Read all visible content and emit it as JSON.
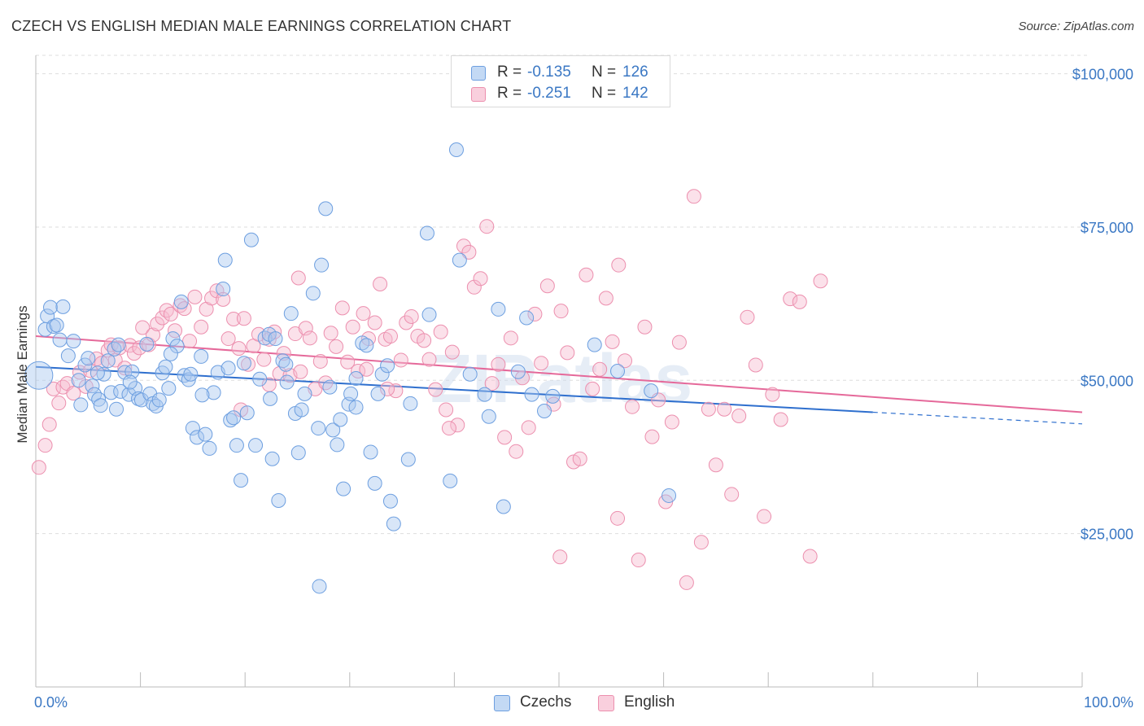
{
  "title": "CZECH VS ENGLISH MEDIAN MALE EARNINGS CORRELATION CHART",
  "source": "Source: ZipAtlas.com",
  "watermark": "ZIPatlas",
  "legend_box": {
    "rows": [
      {
        "r_label": "R =",
        "r_value": "-0.135",
        "n_label": "N =",
        "n_value": "126"
      },
      {
        "r_label": "R =",
        "r_value": "-0.251",
        "n_label": "N =",
        "n_value": "142"
      }
    ]
  },
  "colors": {
    "czechs_fill": "#a9c8f0",
    "czechs_stroke": "#6d9fe0",
    "czechs_line": "#2e6fce",
    "english_fill": "#f7bcd0",
    "english_stroke": "#ec8fae",
    "english_line": "#e5699a",
    "tick_label": "#3b78c4",
    "grid": "#dddddd"
  },
  "chart_data": {
    "type": "scatter",
    "title": "CZECH VS ENGLISH MEDIAN MALE EARNINGS CORRELATION CHART",
    "xlabel": "",
    "ylabel": "Median Male Earnings",
    "x_tick_labels": [
      "0.0%",
      "100.0%"
    ],
    "y_tick_labels": [
      "$25,000",
      "$50,000",
      "$75,000",
      "$100,000"
    ],
    "y_ticks": [
      25000,
      50000,
      75000,
      100000
    ],
    "xlim": [
      0,
      100
    ],
    "ylim": [
      0,
      103000
    ],
    "grid": "horizontal dashed",
    "legend": [
      "Czechs",
      "English"
    ],
    "legend_position": "bottom-center",
    "series": [
      {
        "name": "Czechs",
        "r": -0.135,
        "n": 126,
        "trend": {
          "x_start": 0,
          "y_start": 52200,
          "x_solid_end": 80,
          "y_solid_end": 44800,
          "x_dash_end": 100,
          "y_dash_end": 42900
        },
        "points": [
          [
            0.3,
            50800
          ],
          [
            0.9,
            58300
          ],
          [
            1.1,
            60500
          ],
          [
            1.4,
            61900
          ],
          [
            1.7,
            58800
          ],
          [
            2.0,
            59000
          ],
          [
            2.3,
            56600
          ],
          [
            2.6,
            62000
          ],
          [
            3.1,
            54000
          ],
          [
            3.6,
            56400
          ],
          [
            4.1,
            50000
          ],
          [
            4.3,
            46000
          ],
          [
            4.7,
            52500
          ],
          [
            5.0,
            53600
          ],
          [
            5.4,
            49100
          ],
          [
            5.6,
            47700
          ],
          [
            6.0,
            46900
          ],
          [
            6.2,
            45900
          ],
          [
            6.5,
            51000
          ],
          [
            6.9,
            53200
          ],
          [
            7.2,
            48000
          ],
          [
            7.5,
            55100
          ],
          [
            7.9,
            55800
          ],
          [
            8.1,
            48200
          ],
          [
            8.5,
            51300
          ],
          [
            8.9,
            47700
          ],
          [
            9.2,
            51400
          ],
          [
            9.5,
            48700
          ],
          [
            9.8,
            47000
          ],
          [
            10.1,
            46800
          ],
          [
            10.6,
            55900
          ],
          [
            10.9,
            47800
          ],
          [
            11.2,
            46200
          ],
          [
            11.5,
            45800
          ],
          [
            11.8,
            46800
          ],
          [
            12.1,
            51200
          ],
          [
            12.4,
            52200
          ],
          [
            12.7,
            48700
          ],
          [
            13.1,
            56800
          ],
          [
            13.5,
            55600
          ],
          [
            13.9,
            62800
          ],
          [
            14.2,
            50800
          ],
          [
            14.6,
            50100
          ],
          [
            15.0,
            42200
          ],
          [
            15.4,
            40700
          ],
          [
            15.8,
            53900
          ],
          [
            16.2,
            41200
          ],
          [
            16.6,
            38900
          ],
          [
            17.0,
            48000
          ],
          [
            17.4,
            51300
          ],
          [
            17.9,
            64900
          ],
          [
            18.1,
            69600
          ],
          [
            18.6,
            43500
          ],
          [
            18.9,
            43900
          ],
          [
            19.2,
            39400
          ],
          [
            19.6,
            33700
          ],
          [
            19.9,
            52800
          ],
          [
            20.2,
            44700
          ],
          [
            20.6,
            72900
          ],
          [
            21.0,
            39400
          ],
          [
            21.4,
            50200
          ],
          [
            21.9,
            56900
          ],
          [
            22.3,
            57500
          ],
          [
            22.6,
            37200
          ],
          [
            22.9,
            56800
          ],
          [
            23.2,
            30400
          ],
          [
            23.6,
            53200
          ],
          [
            23.9,
            52600
          ],
          [
            24.4,
            60900
          ],
          [
            24.8,
            44600
          ],
          [
            25.1,
            38200
          ],
          [
            25.4,
            45200
          ],
          [
            25.7,
            47800
          ],
          [
            26.5,
            64200
          ],
          [
            27.0,
            42200
          ],
          [
            27.3,
            68800
          ],
          [
            27.7,
            78000
          ],
          [
            28.1,
            48900
          ],
          [
            28.4,
            41900
          ],
          [
            28.8,
            39500
          ],
          [
            29.1,
            43600
          ],
          [
            29.4,
            32300
          ],
          [
            29.9,
            46100
          ],
          [
            30.1,
            47800
          ],
          [
            30.6,
            45600
          ],
          [
            31.2,
            56100
          ],
          [
            31.6,
            55700
          ],
          [
            32.0,
            38300
          ],
          [
            32.4,
            33200
          ],
          [
            32.7,
            47800
          ],
          [
            33.1,
            51000
          ],
          [
            33.6,
            52400
          ],
          [
            33.9,
            30300
          ],
          [
            34.2,
            26600
          ],
          [
            35.6,
            37100
          ],
          [
            37.4,
            74000
          ],
          [
            37.6,
            60700
          ],
          [
            39.6,
            33600
          ],
          [
            40.5,
            69600
          ],
          [
            41.5,
            51000
          ],
          [
            42.9,
            47700
          ],
          [
            43.3,
            44100
          ],
          [
            44.2,
            61600
          ],
          [
            44.7,
            29400
          ],
          [
            46.1,
            51400
          ],
          [
            46.9,
            60200
          ],
          [
            47.4,
            47700
          ],
          [
            48.6,
            45000
          ],
          [
            49.4,
            47400
          ],
          [
            53.4,
            55800
          ],
          [
            55.6,
            51500
          ],
          [
            58.8,
            48300
          ],
          [
            60.5,
            31200
          ],
          [
            27.1,
            16400
          ],
          [
            40.2,
            87600
          ],
          [
            22.4,
            47000
          ],
          [
            14.8,
            51000
          ],
          [
            9.0,
            49700
          ],
          [
            5.9,
            51200
          ],
          [
            15.9,
            47600
          ],
          [
            35.8,
            46200
          ],
          [
            18.4,
            52000
          ],
          [
            30.6,
            50300
          ],
          [
            12.9,
            54300
          ],
          [
            7.7,
            45300
          ],
          [
            24.0,
            49700
          ]
        ]
      },
      {
        "name": "English",
        "r": -0.251,
        "n": 142,
        "trend": {
          "x_start": 0,
          "y_start": 57200,
          "x_end": 100,
          "y_end": 44800
        },
        "points": [
          [
            0.3,
            35800
          ],
          [
            0.9,
            39400
          ],
          [
            1.3,
            42800
          ],
          [
            1.7,
            48600
          ],
          [
            2.2,
            46300
          ],
          [
            2.6,
            48900
          ],
          [
            3.0,
            49500
          ],
          [
            3.6,
            47900
          ],
          [
            4.2,
            51300
          ],
          [
            4.8,
            49000
          ],
          [
            5.2,
            51600
          ],
          [
            5.8,
            53500
          ],
          [
            6.3,
            52800
          ],
          [
            6.9,
            54900
          ],
          [
            7.2,
            55800
          ],
          [
            7.6,
            53300
          ],
          [
            8.0,
            55300
          ],
          [
            8.5,
            52000
          ],
          [
            9.0,
            55700
          ],
          [
            9.4,
            54400
          ],
          [
            9.9,
            55300
          ],
          [
            10.2,
            58600
          ],
          [
            10.8,
            55800
          ],
          [
            11.2,
            57400
          ],
          [
            11.6,
            59200
          ],
          [
            12.1,
            60200
          ],
          [
            12.5,
            61400
          ],
          [
            12.9,
            60800
          ],
          [
            13.3,
            58100
          ],
          [
            13.8,
            62200
          ],
          [
            14.2,
            61700
          ],
          [
            14.7,
            56400
          ],
          [
            15.2,
            63600
          ],
          [
            15.8,
            58700
          ],
          [
            16.3,
            61600
          ],
          [
            16.8,
            63400
          ],
          [
            17.3,
            64600
          ],
          [
            17.9,
            63200
          ],
          [
            18.4,
            56800
          ],
          [
            18.9,
            60000
          ],
          [
            19.4,
            55200
          ],
          [
            19.9,
            60100
          ],
          [
            20.3,
            52600
          ],
          [
            20.8,
            55600
          ],
          [
            21.3,
            57500
          ],
          [
            21.8,
            53400
          ],
          [
            22.3,
            56700
          ],
          [
            22.8,
            57900
          ],
          [
            23.3,
            51100
          ],
          [
            23.7,
            54400
          ],
          [
            24.3,
            50800
          ],
          [
            24.8,
            57600
          ],
          [
            25.3,
            51400
          ],
          [
            25.8,
            58500
          ],
          [
            26.2,
            56900
          ],
          [
            26.7,
            48600
          ],
          [
            27.2,
            53100
          ],
          [
            27.7,
            49600
          ],
          [
            28.2,
            57700
          ],
          [
            28.7,
            55500
          ],
          [
            29.3,
            61800
          ],
          [
            29.8,
            53000
          ],
          [
            30.3,
            58700
          ],
          [
            30.8,
            51500
          ],
          [
            31.3,
            60900
          ],
          [
            31.8,
            56800
          ],
          [
            32.4,
            59400
          ],
          [
            32.9,
            65700
          ],
          [
            33.4,
            56700
          ],
          [
            33.9,
            57200
          ],
          [
            34.4,
            48300
          ],
          [
            34.9,
            53300
          ],
          [
            35.4,
            59400
          ],
          [
            35.9,
            60400
          ],
          [
            36.5,
            57200
          ],
          [
            37.1,
            56500
          ],
          [
            37.6,
            53400
          ],
          [
            38.2,
            48500
          ],
          [
            38.7,
            57900
          ],
          [
            39.2,
            45200
          ],
          [
            39.8,
            54600
          ],
          [
            40.3,
            42700
          ],
          [
            40.9,
            71900
          ],
          [
            41.4,
            70900
          ],
          [
            41.9,
            65200
          ],
          [
            42.5,
            66600
          ],
          [
            43.1,
            75100
          ],
          [
            43.6,
            49500
          ],
          [
            44.2,
            52600
          ],
          [
            44.8,
            40700
          ],
          [
            45.4,
            56900
          ],
          [
            45.9,
            38400
          ],
          [
            46.5,
            50400
          ],
          [
            47.1,
            42300
          ],
          [
            47.7,
            60800
          ],
          [
            48.3,
            52800
          ],
          [
            48.9,
            65400
          ],
          [
            49.5,
            46100
          ],
          [
            50.2,
            61300
          ],
          [
            50.8,
            54500
          ],
          [
            51.4,
            36700
          ],
          [
            52.0,
            37200
          ],
          [
            52.6,
            67200
          ],
          [
            53.2,
            48600
          ],
          [
            53.9,
            51800
          ],
          [
            54.5,
            63400
          ],
          [
            55.1,
            56300
          ],
          [
            55.7,
            68800
          ],
          [
            56.3,
            53200
          ],
          [
            57.0,
            45700
          ],
          [
            57.6,
            20700
          ],
          [
            58.2,
            58700
          ],
          [
            58.9,
            40800
          ],
          [
            59.5,
            46800
          ],
          [
            60.2,
            30200
          ],
          [
            60.8,
            43200
          ],
          [
            61.5,
            56200
          ],
          [
            62.2,
            17000
          ],
          [
            62.9,
            80000
          ],
          [
            63.6,
            23600
          ],
          [
            64.3,
            45300
          ],
          [
            65.0,
            36200
          ],
          [
            65.8,
            45300
          ],
          [
            66.5,
            31400
          ],
          [
            67.2,
            44200
          ],
          [
            68.0,
            60300
          ],
          [
            68.8,
            52500
          ],
          [
            69.6,
            27800
          ],
          [
            70.4,
            47700
          ],
          [
            71.2,
            43600
          ],
          [
            72.1,
            63300
          ],
          [
            73.0,
            62800
          ],
          [
            74.0,
            21300
          ],
          [
            75.0,
            66200
          ],
          [
            55.6,
            27500
          ],
          [
            50.1,
            21200
          ],
          [
            39.5,
            42200
          ],
          [
            25.1,
            66700
          ],
          [
            31.6,
            51800
          ],
          [
            22.3,
            49300
          ],
          [
            19.6,
            45200
          ],
          [
            33.6,
            48600
          ]
        ]
      }
    ]
  },
  "bottom_legend": {
    "items": [
      {
        "label": "Czechs"
      },
      {
        "label": "English"
      }
    ]
  }
}
